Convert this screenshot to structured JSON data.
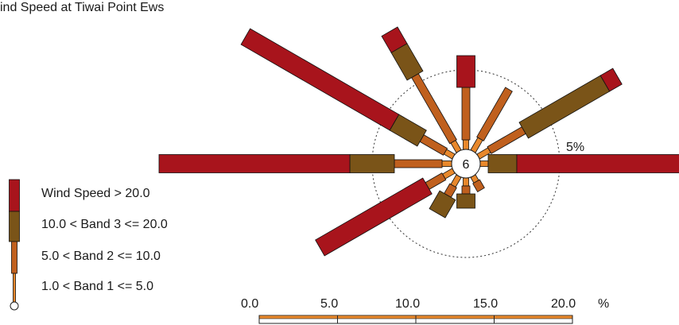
{
  "chart_data": {
    "type": "wind-rose",
    "title": "ind Speed at Tiwai Point Ews",
    "center_label": "6",
    "ring_label": "5%",
    "units": "%",
    "scale_ticks": [
      "0.0",
      "5.0",
      "10.0",
      "15.0",
      "20.0"
    ],
    "scale_unit_label": "%",
    "bands": [
      {
        "name": "Wind Speed > 20.0",
        "color": "#a8141c"
      },
      {
        "name": "10.0 < Band 3 <= 20.0",
        "color": "#7a5418"
      },
      {
        "name": "5.0 < Band 2 <= 10.0",
        "color": "#c0601e"
      },
      {
        "name": "1.0 < Band 1 <= 5.0",
        "color": "#e8882c"
      }
    ],
    "directions": [
      {
        "bearing": 0,
        "band1": 0.6,
        "band2": 3.3,
        "band3": 0.0,
        "band4": 2.0
      },
      {
        "bearing": 30,
        "band1": 0.9,
        "band2": 3.6,
        "band3": 0.0,
        "band4": 0.0
      },
      {
        "bearing": 60,
        "band1": 0.8,
        "band2": 2.5,
        "band3": 5.9,
        "band4": 0.9
      },
      {
        "bearing": 90,
        "band1": 0.5,
        "band2": 0.0,
        "band3": 1.8,
        "band4": 10.6
      },
      {
        "bearing": 150,
        "band1": 0.4,
        "band2": 0.6,
        "band3": 0.0,
        "band4": 0.0
      },
      {
        "bearing": 180,
        "band1": 0.5,
        "band2": 0.5,
        "band3": 0.9,
        "band4": 0.0
      },
      {
        "bearing": 210,
        "band1": 0.7,
        "band2": 0.7,
        "band3": 1.3,
        "band4": 0.0
      },
      {
        "bearing": 240,
        "band1": 0.7,
        "band2": 1.2,
        "band3": 0.0,
        "band4": 7.8
      },
      {
        "bearing": 270,
        "band1": 0.6,
        "band2": 3.0,
        "band3": 2.8,
        "band4": 12.0
      },
      {
        "bearing": 300,
        "band1": 0.6,
        "band2": 1.7,
        "band3": 2.0,
        "band4": 10.8
      },
      {
        "bearing": 330,
        "band1": 0.7,
        "band2": 4.8,
        "band3": 2.0,
        "band4": 1.2
      }
    ]
  }
}
